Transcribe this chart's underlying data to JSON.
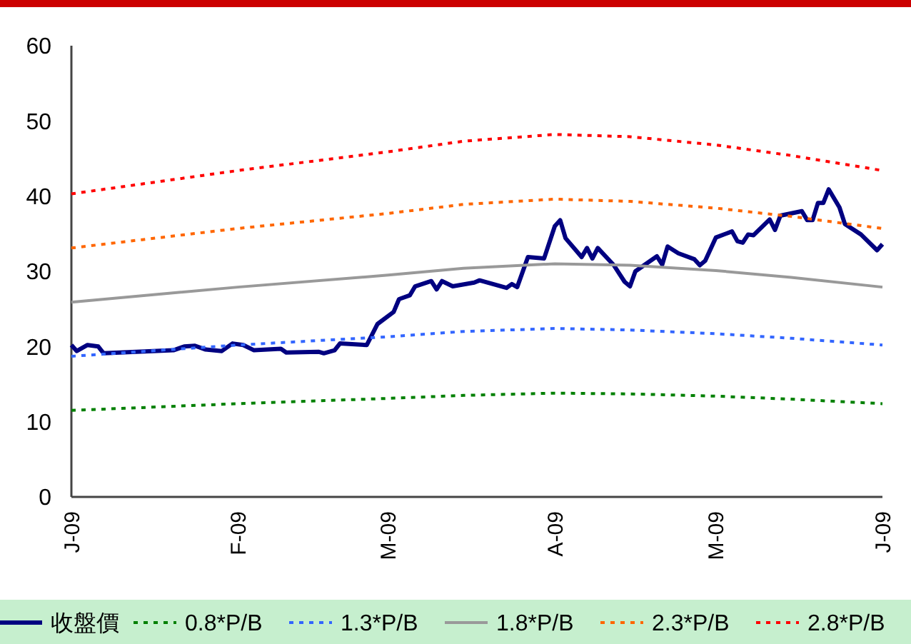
{
  "chart_data": {
    "type": "line",
    "xlim": [
      "2009-01-01",
      "2009-06-01"
    ],
    "xticks": [
      {
        "value": "2009-01-01",
        "label": "J-09"
      },
      {
        "value": "2009-02-01",
        "label": "F-09"
      },
      {
        "value": "2009-03-01",
        "label": "M-09"
      },
      {
        "value": "2009-04-01",
        "label": "A-09"
      },
      {
        "value": "2009-05-01",
        "label": "M-09"
      },
      {
        "value": "2009-06-01",
        "label": "J-09"
      }
    ],
    "ylim": [
      0,
      60
    ],
    "yticks": [
      0,
      10,
      20,
      30,
      40,
      50,
      60
    ],
    "grid": false,
    "legend": "bottom",
    "series": [
      {
        "name": "收盤價",
        "color": "#000080",
        "line_style": "solid",
        "x": [
          "2009-01-01",
          "2009-01-02",
          "2009-01-04",
          "2009-01-06",
          "2009-01-07",
          "2009-01-20",
          "2009-01-22",
          "2009-01-24",
          "2009-01-26",
          "2009-01-29",
          "2009-01-31",
          "2009-02-02",
          "2009-02-04",
          "2009-02-09",
          "2009-02-10",
          "2009-02-16",
          "2009-02-17",
          "2009-02-19",
          "2009-02-20",
          "2009-02-25",
          "2009-02-27",
          "2009-03-02",
          "2009-03-03",
          "2009-03-05",
          "2009-03-06",
          "2009-03-09",
          "2009-03-10",
          "2009-03-11",
          "2009-03-13",
          "2009-03-17",
          "2009-03-18",
          "2009-03-23",
          "2009-03-24",
          "2009-03-25",
          "2009-03-27",
          "2009-03-30",
          "2009-04-01",
          "2009-04-02",
          "2009-04-03",
          "2009-04-06",
          "2009-04-07",
          "2009-04-08",
          "2009-04-09",
          "2009-04-12",
          "2009-04-14",
          "2009-04-15",
          "2009-04-16",
          "2009-04-20",
          "2009-04-21",
          "2009-04-22",
          "2009-04-24",
          "2009-04-27",
          "2009-04-28",
          "2009-04-29",
          "2009-05-01",
          "2009-05-04",
          "2009-05-05",
          "2009-05-06",
          "2009-05-07",
          "2009-05-08",
          "2009-05-11",
          "2009-05-12",
          "2009-05-13",
          "2009-05-17",
          "2009-05-18",
          "2009-05-19",
          "2009-05-20",
          "2009-05-21",
          "2009-05-22",
          "2009-05-24",
          "2009-05-25",
          "2009-05-28",
          "2009-05-31",
          "2009-06-01"
        ],
        "values": [
          20.2,
          19.4,
          20.2,
          20.0,
          19.1,
          19.5,
          20.0,
          20.1,
          19.6,
          19.4,
          20.4,
          20.2,
          19.5,
          19.7,
          19.2,
          19.3,
          19.1,
          19.5,
          20.4,
          20.2,
          23.0,
          24.6,
          26.3,
          26.8,
          28.0,
          28.7,
          27.6,
          28.7,
          28.0,
          28.5,
          28.8,
          27.8,
          28.3,
          27.9,
          31.9,
          31.7,
          36.0,
          36.8,
          34.4,
          31.9,
          33.1,
          31.7,
          33.1,
          30.8,
          28.6,
          28.0,
          30.0,
          32.0,
          30.9,
          33.3,
          32.4,
          31.6,
          30.8,
          31.4,
          34.5,
          35.3,
          34.0,
          33.8,
          34.9,
          34.8,
          36.9,
          35.5,
          37.4,
          38.0,
          36.8,
          36.8,
          39.1,
          39.1,
          40.9,
          38.5,
          36.3,
          34.9,
          32.8,
          33.6
        ]
      },
      {
        "name": "0.8*P/B",
        "color": "#008000",
        "line_style": "dotted",
        "x": [
          "2009-01-01",
          "2009-02-01",
          "2009-03-01",
          "2009-03-15",
          "2009-04-01",
          "2009-04-15",
          "2009-05-01",
          "2009-05-15",
          "2009-06-01"
        ],
        "values": [
          11.5,
          12.4,
          13.1,
          13.5,
          13.8,
          13.7,
          13.4,
          13.0,
          12.4
        ]
      },
      {
        "name": "1.3*P/B",
        "color": "#3366ff",
        "line_style": "dotted",
        "x": [
          "2009-01-01",
          "2009-02-01",
          "2009-03-01",
          "2009-03-15",
          "2009-04-01",
          "2009-04-15",
          "2009-05-01",
          "2009-05-15",
          "2009-06-01"
        ],
        "values": [
          18.7,
          20.2,
          21.3,
          22.0,
          22.4,
          22.2,
          21.7,
          21.1,
          20.2
        ]
      },
      {
        "name": "1.8*P/B",
        "color": "#999999",
        "line_style": "solid",
        "x": [
          "2009-01-01",
          "2009-02-01",
          "2009-03-01",
          "2009-03-15",
          "2009-04-01",
          "2009-04-15",
          "2009-05-01",
          "2009-05-15",
          "2009-06-01"
        ],
        "values": [
          25.9,
          27.9,
          29.5,
          30.4,
          31.0,
          30.8,
          30.1,
          29.2,
          27.9
        ]
      },
      {
        "name": "2.3*P/B",
        "color": "#ff6600",
        "line_style": "dotted",
        "x": [
          "2009-01-01",
          "2009-02-01",
          "2009-03-01",
          "2009-03-15",
          "2009-04-01",
          "2009-04-15",
          "2009-05-01",
          "2009-05-15",
          "2009-06-01"
        ],
        "values": [
          33.1,
          35.7,
          37.7,
          38.9,
          39.6,
          39.3,
          38.4,
          37.3,
          35.7
        ]
      },
      {
        "name": "2.8*P/B",
        "color": "#ff0000",
        "line_style": "dotted",
        "x": [
          "2009-01-01",
          "2009-02-01",
          "2009-03-01",
          "2009-03-15",
          "2009-04-01",
          "2009-04-15",
          "2009-05-01",
          "2009-05-15",
          "2009-06-01"
        ],
        "values": [
          40.3,
          43.4,
          45.9,
          47.3,
          48.2,
          47.9,
          46.8,
          45.4,
          43.4
        ]
      }
    ]
  }
}
